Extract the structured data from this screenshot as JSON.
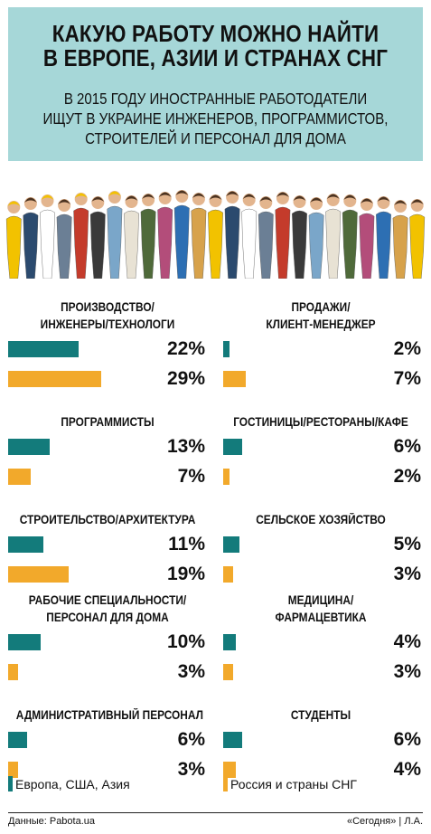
{
  "header": {
    "title_lines": [
      "КАКУЮ РАБОТУ МОЖНО НАЙТИ",
      "В ЕВРОПЕ, АЗИИ И СТРАНАХ СНГ"
    ],
    "subtitle_lines": [
      "В 2015 ГОДУ ИНОСТРАННЫЕ РАБОТОДАТЕЛИ",
      "ИЩУТ В УКРАИНЕ ИНЖЕНЕРОВ, ПРОГРАММИСТОВ,",
      "СТРОИТЕЛЕЙ И ПЕРСОНАЛ ДЛЯ ДОМА"
    ]
  },
  "colors": {
    "header_bg": "#a6d7d8",
    "series_1": "#137b7b",
    "series_2": "#f2a92b"
  },
  "chart_data": {
    "type": "bar",
    "orientation": "horizontal",
    "unit": "%",
    "series": [
      {
        "name": "Европа, США, Азия",
        "color": "#137b7b"
      },
      {
        "name": "Россия и страны СНГ",
        "color": "#f2a92b"
      }
    ],
    "categories": [
      {
        "label_lines": [
          "ПРОИЗВОДСТВО/",
          "ИНЖЕНЕРЫ/ТЕХНОЛОГИ"
        ],
        "values": [
          22,
          29
        ],
        "labels": [
          "22%",
          "29%"
        ]
      },
      {
        "label_lines": [
          "ПРОДАЖИ/",
          "КЛИЕНТ-МЕНЕДЖЕР"
        ],
        "values": [
          2,
          7
        ],
        "labels": [
          "2%",
          "7%"
        ]
      },
      {
        "label_lines": [
          "ПРОГРАММИСТЫ"
        ],
        "values": [
          13,
          7
        ],
        "labels": [
          "13%",
          "7%"
        ]
      },
      {
        "label_lines": [
          "ГОСТИНИЦЫ/РЕСТОРАНЫ/КАФЕ"
        ],
        "values": [
          6,
          2
        ],
        "labels": [
          "6%",
          "2%"
        ]
      },
      {
        "label_lines": [
          "СТРОИТЕЛЬСТВО/АРХИТЕКТУРА"
        ],
        "values": [
          11,
          19
        ],
        "labels": [
          "11%",
          "19%"
        ]
      },
      {
        "label_lines": [
          "СЕЛЬСКОЕ ХОЗЯЙСТВО"
        ],
        "values": [
          5,
          3
        ],
        "labels": [
          "5%",
          "3%"
        ]
      },
      {
        "label_lines": [
          "РАБОЧИЕ СПЕЦИАЛЬНОСТИ/",
          "ПЕРСОНАЛ ДЛЯ ДОМА"
        ],
        "values": [
          10,
          3
        ],
        "labels": [
          "10%",
          "3%"
        ]
      },
      {
        "label_lines": [
          "МЕДИЦИНА/",
          "ФАРМАЦЕВТИКА"
        ],
        "values": [
          4,
          3
        ],
        "labels": [
          "4%",
          "3%"
        ]
      },
      {
        "label_lines": [
          "АДМИНИСТРАТИВНЫЙ ПЕРСОНАЛ"
        ],
        "values": [
          6,
          3
        ],
        "labels": [
          "6%",
          "3%"
        ]
      },
      {
        "label_lines": [
          "СТУДЕНТЫ"
        ],
        "values": [
          6,
          4
        ],
        "labels": [
          "6%",
          "4%"
        ]
      }
    ],
    "legend": {
      "placement": "bottom",
      "entries": [
        "Европа, США, Азия",
        "Россия и страны СНГ"
      ]
    }
  },
  "footer": {
    "source": "Данные: Pabota.ua",
    "credit": "«Сегодня» | Л.А."
  }
}
